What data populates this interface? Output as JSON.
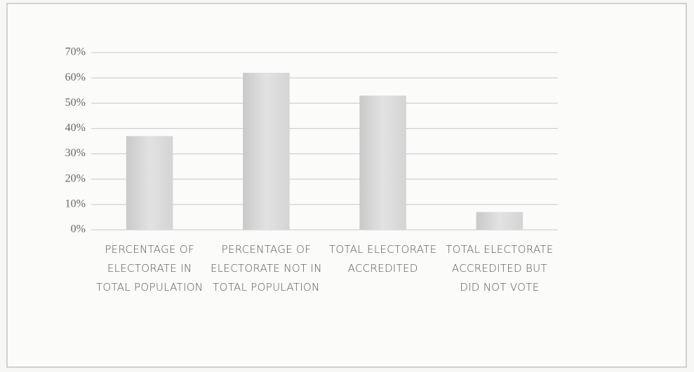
{
  "chart_data": {
    "type": "bar",
    "categories": [
      "PERCENTAGE OF ELECTORATE IN TOTAL POPULATION",
      "PERCENTAGE OF ELECTORATE NOT IN TOTAL POPULATION",
      "TOTAL ELECTORATE ACCREDITED",
      "TOTAL ELECTORATE ACCREDITED BUT DID NOT VOTE"
    ],
    "values": [
      37,
      62,
      53,
      7
    ],
    "color": "#d6d6d6",
    "ylim": [
      0,
      70
    ],
    "yticks": [
      {
        "value": 0,
        "label": "0%"
      },
      {
        "value": 10,
        "label": "10%"
      },
      {
        "value": 20,
        "label": "20%"
      },
      {
        "value": 30,
        "label": "30%"
      },
      {
        "value": 40,
        "label": "40%"
      },
      {
        "value": 50,
        "label": "50%"
      },
      {
        "value": 60,
        "label": "60%"
      },
      {
        "value": 70,
        "label": "70%"
      }
    ],
    "grid": true
  }
}
